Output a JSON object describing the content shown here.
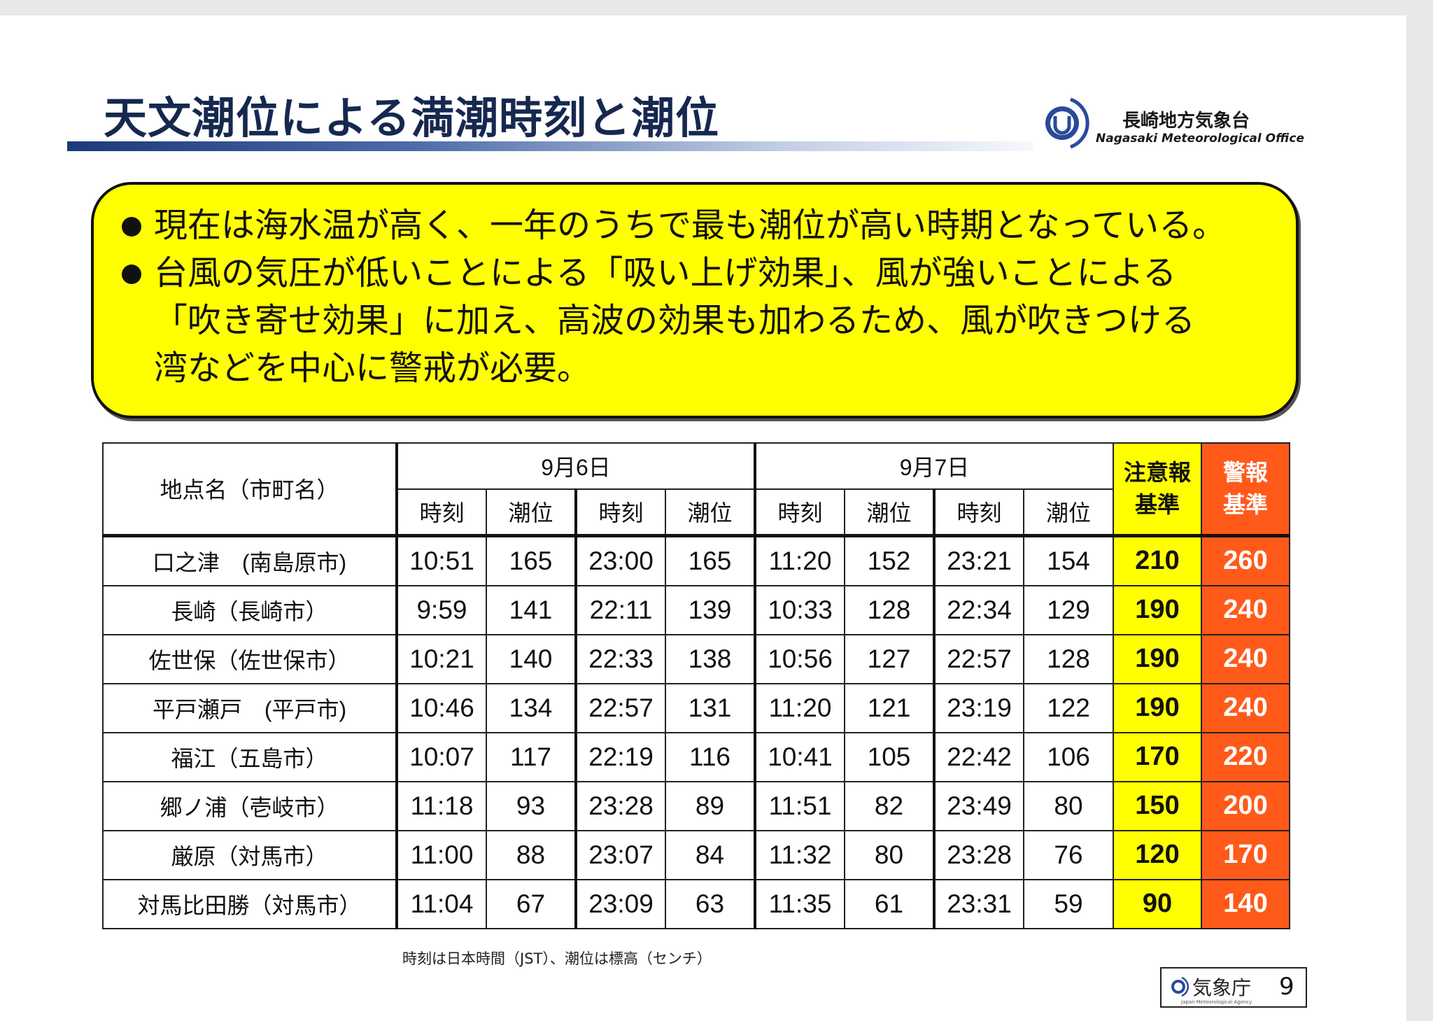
{
  "title": "天文潮位による満潮時刻と潮位",
  "office": {
    "name_ja": "長崎地方気象台",
    "name_en": "Nagasaki Meteorological Office",
    "logo_icon": "jma-logo-icon"
  },
  "notice": {
    "bullets": [
      "現在は海水温が高く、一年のうちで最も潮位が高い時期となっている。",
      "台風の気圧が低いことによる「吸い上げ効果」、風が強いことによる\n「吹き寄せ効果」に加え、高波の効果も加わるため、風が吹きつける\n湾などを中心に警戒が必要。"
    ]
  },
  "table": {
    "site_header": "地点名（市町名）",
    "date1": "9月6日",
    "date2": "9月7日",
    "time_label": "時刻",
    "level_label": "潮位",
    "caution_header": "注意報\n基準",
    "warning_header": "警報\n基準",
    "rows": [
      {
        "site": "口之津　(南島原市)",
        "d1t1": "10:51",
        "d1l1": "165",
        "d1t2": "23:00",
        "d1l2": "165",
        "d2t1": "11:20",
        "d2l1": "152",
        "d2t2": "23:21",
        "d2l2": "154",
        "caution": "210",
        "warning": "260"
      },
      {
        "site": "長崎（長崎市）",
        "d1t1": "9:59",
        "d1l1": "141",
        "d1t2": "22:11",
        "d1l2": "139",
        "d2t1": "10:33",
        "d2l1": "128",
        "d2t2": "22:34",
        "d2l2": "129",
        "caution": "190",
        "warning": "240"
      },
      {
        "site": "佐世保（佐世保市）",
        "d1t1": "10:21",
        "d1l1": "140",
        "d1t2": "22:33",
        "d1l2": "138",
        "d2t1": "10:56",
        "d2l1": "127",
        "d2t2": "22:57",
        "d2l2": "128",
        "caution": "190",
        "warning": "240"
      },
      {
        "site": "平戸瀬戸　(平戸市)",
        "d1t1": "10:46",
        "d1l1": "134",
        "d1t2": "22:57",
        "d1l2": "131",
        "d2t1": "11:20",
        "d2l1": "121",
        "d2t2": "23:19",
        "d2l2": "122",
        "caution": "190",
        "warning": "240"
      },
      {
        "site": "福江（五島市）",
        "d1t1": "10:07",
        "d1l1": "117",
        "d1t2": "22:19",
        "d1l2": "116",
        "d2t1": "10:41",
        "d2l1": "105",
        "d2t2": "22:42",
        "d2l2": "106",
        "caution": "170",
        "warning": "220"
      },
      {
        "site": "郷ノ浦（壱岐市）",
        "d1t1": "11:18",
        "d1l1": "93",
        "d1t2": "23:28",
        "d1l2": "89",
        "d2t1": "11:51",
        "d2l1": "82",
        "d2t2": "23:49",
        "d2l2": "80",
        "caution": "150",
        "warning": "200"
      },
      {
        "site": "厳原（対馬市）",
        "d1t1": "11:00",
        "d1l1": "88",
        "d1t2": "23:07",
        "d1l2": "84",
        "d2t1": "11:32",
        "d2l1": "80",
        "d2t2": "23:28",
        "d2l2": "76",
        "caution": "120",
        "warning": "170"
      },
      {
        "site": "対馬比田勝（対馬市）",
        "d1t1": "11:04",
        "d1l1": "67",
        "d1t2": "23:09",
        "d1l2": "63",
        "d2t1": "11:35",
        "d2l1": "61",
        "d2t2": "23:31",
        "d2l2": "59",
        "caution": "90",
        "warning": "140"
      }
    ]
  },
  "footnote": "時刻は日本時間（JST）、潮位は標高（センチ）",
  "footer_badge": {
    "agency": "気象庁",
    "agency_en": "Japan Meteorological Agency",
    "page": "9"
  },
  "colors": {
    "title": "#16284f",
    "notice_bg": "#ffff00",
    "caution_bg": "#ffff00",
    "warning_bg": "#ff5a1a"
  }
}
